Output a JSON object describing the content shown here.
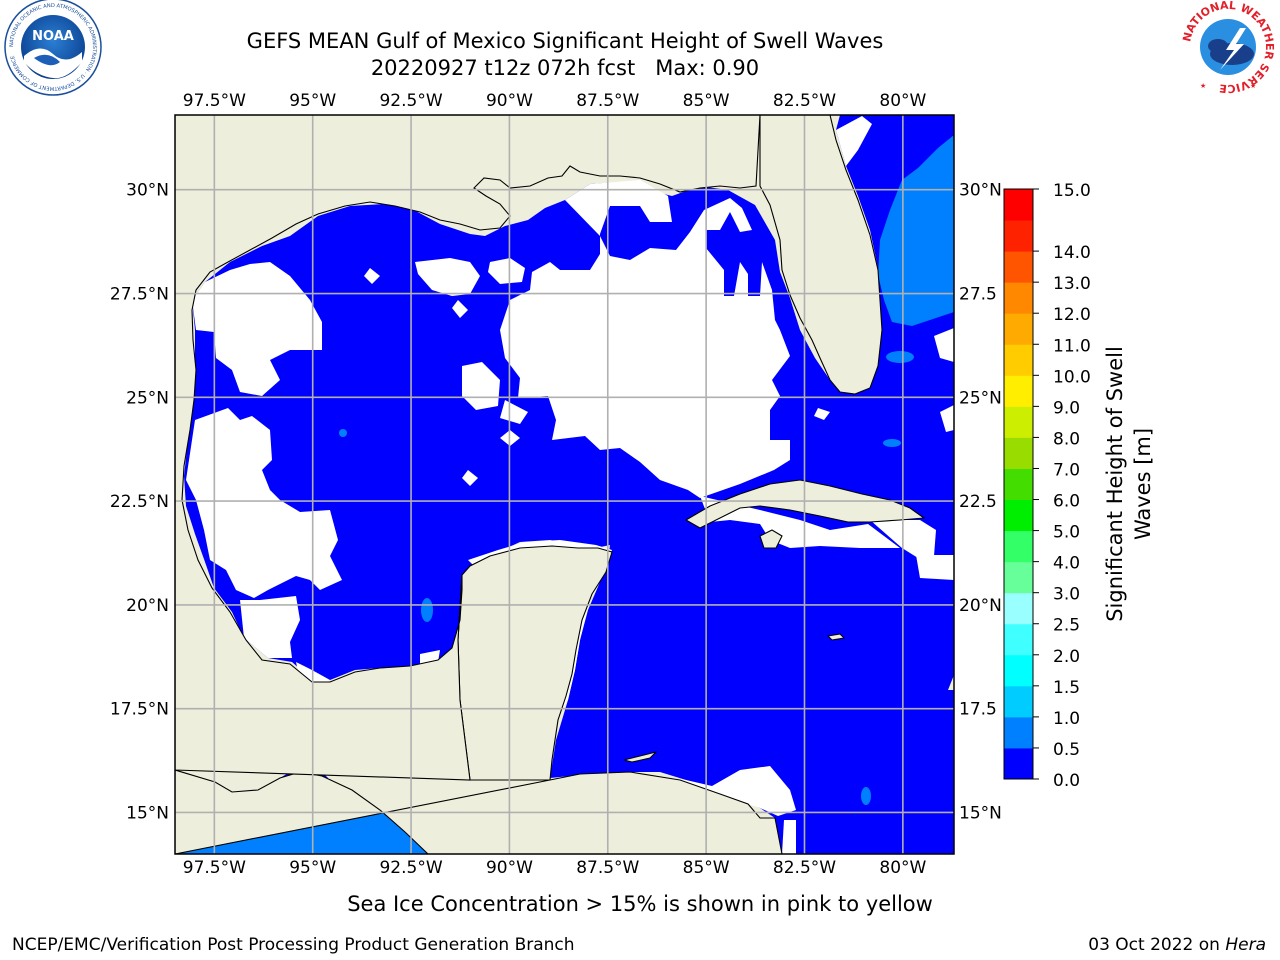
{
  "header": {
    "title_line1": "GEFS MEAN Gulf of Mexico Significant Height of Swell Waves",
    "title_line2": "20220927 t12z 072h fcst   Max: 0.90"
  },
  "logos": {
    "left_name": "NOAA",
    "left_ring_text": "NATIONAL OCEANIC AND ATMOSPHERIC ADMINISTRATION · U.S. DEPARTMENT OF COMMERCE",
    "right_ring_text": "NATIONAL WEATHER SERVICE"
  },
  "map": {
    "lon_range": [
      -98.5,
      -78.7
    ],
    "lat_range": [
      14.0,
      31.8
    ],
    "lon_ticks": [
      {
        "value": -97.5,
        "label": "97.5°W"
      },
      {
        "value": -95,
        "label": "95°W"
      },
      {
        "value": -92.5,
        "label": "92.5°W"
      },
      {
        "value": -90,
        "label": "90°W"
      },
      {
        "value": -87.5,
        "label": "87.5°W"
      },
      {
        "value": -85,
        "label": "85°W"
      },
      {
        "value": -82.5,
        "label": "82.5°W"
      },
      {
        "value": -80,
        "label": "80°W"
      }
    ],
    "lat_ticks_left": [
      {
        "value": 30,
        "label": "30°N"
      },
      {
        "value": 27.5,
        "label": "27.5°N"
      },
      {
        "value": 25,
        "label": "25°N"
      },
      {
        "value": 22.5,
        "label": "22.5°N"
      },
      {
        "value": 20,
        "label": "20°N"
      },
      {
        "value": 17.5,
        "label": "17.5°N"
      },
      {
        "value": 15,
        "label": "15°N"
      }
    ],
    "lat_ticks_right": [
      {
        "value": 30,
        "label": "30°N"
      },
      {
        "value": 27.5,
        "label": "27.5"
      },
      {
        "value": 25,
        "label": "25°N"
      },
      {
        "value": 22.5,
        "label": "22.5"
      },
      {
        "value": 20,
        "label": "20°N"
      },
      {
        "value": 17.5,
        "label": "17.5"
      },
      {
        "value": 15,
        "label": "15°N"
      }
    ],
    "colors": {
      "land": "#eeeedd",
      "no_data": "#ffffff",
      "grid": "#b0b0b0",
      "coast": "#000000"
    }
  },
  "colorbar": {
    "label_line1": "Significant Height of Swell",
    "label_line2": "Waves [m]",
    "bins": [
      {
        "color": "#0000ff",
        "label": "0.0"
      },
      {
        "color": "#0080ff",
        "label": "0.5"
      },
      {
        "color": "#00ccff",
        "label": "1.0"
      },
      {
        "color": "#00ffff",
        "label": "1.5"
      },
      {
        "color": "#40ffff",
        "label": "2.0"
      },
      {
        "color": "#99ffff",
        "label": "2.5"
      },
      {
        "color": "#66ff99",
        "label": "3.0"
      },
      {
        "color": "#33ff66",
        "label": "4.0"
      },
      {
        "color": "#00ee00",
        "label": "5.0"
      },
      {
        "color": "#44dd00",
        "label": "6.0"
      },
      {
        "color": "#99dd00",
        "label": "7.0"
      },
      {
        "color": "#ccee00",
        "label": "8.0"
      },
      {
        "color": "#ffee00",
        "label": "9.0"
      },
      {
        "color": "#ffcc00",
        "label": "10.0"
      },
      {
        "color": "#ffaa00",
        "label": "11.0"
      },
      {
        "color": "#ff8800",
        "label": "12.0"
      },
      {
        "color": "#ff5500",
        "label": "13.0"
      },
      {
        "color": "#ff2200",
        "label": "14.0"
      },
      {
        "color": "#ff0000",
        "label": ""
      }
    ],
    "top_label": "15.0"
  },
  "notes": {
    "sea_ice": "Sea Ice Concentration > 15% is shown in pink to yellow"
  },
  "footer": {
    "left": "NCEP/EMC/Verification Post Processing Product Generation Branch",
    "date": "03 Oct 2022 on ",
    "machine": "Hera"
  }
}
